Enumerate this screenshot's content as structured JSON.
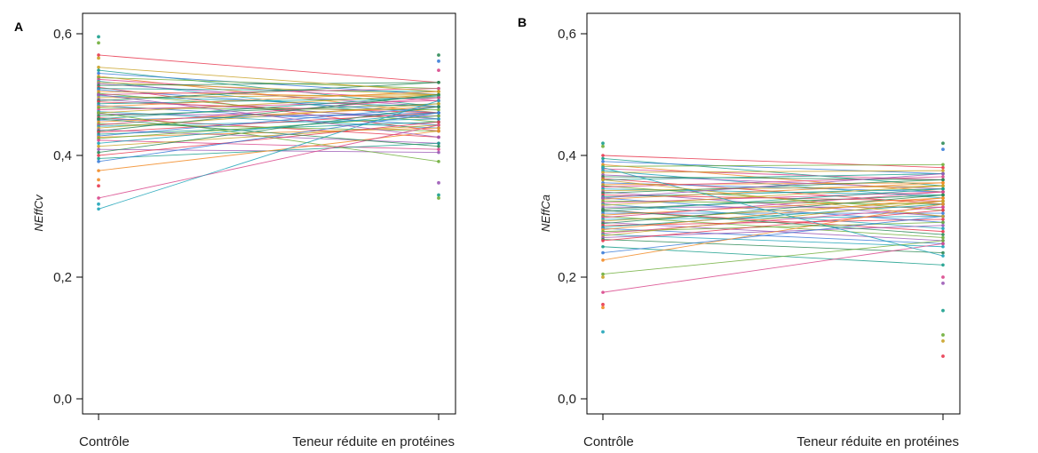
{
  "chart_data": [
    {
      "type": "line",
      "panel_label": "A",
      "ylabel": "NEffCv",
      "categories": [
        "Contrôle",
        "Teneur réduite en protéines"
      ],
      "ylim": [
        0,
        0.62
      ],
      "yticks": [
        0.0,
        0.2,
        0.4,
        0.6
      ],
      "ytick_labels": [
        "0,0",
        "0,2",
        "0,4",
        "0,6"
      ],
      "grid": false,
      "lines": [
        [
          0.565,
          0.52
        ],
        [
          0.54,
          0.48
        ],
        [
          0.535,
          0.5
        ],
        [
          0.53,
          0.47
        ],
        [
          0.528,
          0.51
        ],
        [
          0.525,
          0.49
        ],
        [
          0.522,
          0.46
        ],
        [
          0.52,
          0.5
        ],
        [
          0.518,
          0.48
        ],
        [
          0.515,
          0.52
        ],
        [
          0.512,
          0.44
        ],
        [
          0.51,
          0.505
        ],
        [
          0.508,
          0.47
        ],
        [
          0.505,
          0.495
        ],
        [
          0.502,
          0.455
        ],
        [
          0.5,
          0.51
        ],
        [
          0.498,
          0.48
        ],
        [
          0.495,
          0.5
        ],
        [
          0.492,
          0.46
        ],
        [
          0.49,
          0.52
        ],
        [
          0.488,
          0.47
        ],
        [
          0.485,
          0.495
        ],
        [
          0.482,
          0.45
        ],
        [
          0.48,
          0.505
        ],
        [
          0.478,
          0.475
        ],
        [
          0.475,
          0.49
        ],
        [
          0.472,
          0.445
        ],
        [
          0.47,
          0.5
        ],
        [
          0.468,
          0.465
        ],
        [
          0.465,
          0.485
        ],
        [
          0.462,
          0.43
        ],
        [
          0.46,
          0.498
        ],
        [
          0.458,
          0.47
        ],
        [
          0.455,
          0.48
        ],
        [
          0.452,
          0.44
        ],
        [
          0.45,
          0.495
        ],
        [
          0.448,
          0.46
        ],
        [
          0.445,
          0.485
        ],
        [
          0.442,
          0.42
        ],
        [
          0.44,
          0.5
        ],
        [
          0.438,
          0.47
        ],
        [
          0.435,
          0.455
        ],
        [
          0.432,
          0.48
        ],
        [
          0.43,
          0.445
        ],
        [
          0.428,
          0.465
        ],
        [
          0.425,
          0.41
        ],
        [
          0.42,
          0.47
        ],
        [
          0.415,
          0.45
        ],
        [
          0.41,
          0.405
        ],
        [
          0.405,
          0.48
        ],
        [
          0.4,
          0.455
        ],
        [
          0.395,
          0.42
        ],
        [
          0.39,
          0.47
        ],
        [
          0.375,
          0.44
        ],
        [
          0.47,
          0.39
        ],
        [
          0.33,
          0.45
        ],
        [
          0.312,
          0.49
        ],
        [
          0.545,
          0.505
        ],
        [
          0.5,
          0.43
        ],
        [
          0.46,
          0.415
        ]
      ],
      "extra_points": [
        {
          "x": 0,
          "y": 0.595
        },
        {
          "x": 0,
          "y": 0.585
        },
        {
          "x": 0,
          "y": 0.56
        },
        {
          "x": 0,
          "y": 0.35
        },
        {
          "x": 0,
          "y": 0.36
        },
        {
          "x": 0,
          "y": 0.32
        },
        {
          "x": 1,
          "y": 0.565
        },
        {
          "x": 1,
          "y": 0.555
        },
        {
          "x": 1,
          "y": 0.54
        },
        {
          "x": 1,
          "y": 0.355
        },
        {
          "x": 1,
          "y": 0.335
        },
        {
          "x": 1,
          "y": 0.33
        }
      ]
    },
    {
      "type": "line",
      "panel_label": "B",
      "ylabel": "NEffCa",
      "categories": [
        "Contrôle",
        "Teneur réduite en protéines"
      ],
      "ylim": [
        0,
        0.62
      ],
      "yticks": [
        0.0,
        0.2,
        0.4,
        0.6
      ],
      "ytick_labels": [
        "0,0",
        "0,2",
        "0,4",
        "0,6"
      ],
      "grid": false,
      "lines": [
        [
          0.4,
          0.38
        ],
        [
          0.395,
          0.35
        ],
        [
          0.39,
          0.37
        ],
        [
          0.385,
          0.34
        ],
        [
          0.382,
          0.385
        ],
        [
          0.378,
          0.36
        ],
        [
          0.375,
          0.33
        ],
        [
          0.372,
          0.375
        ],
        [
          0.368,
          0.345
        ],
        [
          0.365,
          0.36
        ],
        [
          0.362,
          0.32
        ],
        [
          0.36,
          0.37
        ],
        [
          0.355,
          0.34
        ],
        [
          0.352,
          0.355
        ],
        [
          0.35,
          0.31
        ],
        [
          0.348,
          0.365
        ],
        [
          0.345,
          0.335
        ],
        [
          0.342,
          0.35
        ],
        [
          0.34,
          0.3
        ],
        [
          0.338,
          0.36
        ],
        [
          0.335,
          0.325
        ],
        [
          0.332,
          0.345
        ],
        [
          0.33,
          0.29
        ],
        [
          0.328,
          0.355
        ],
        [
          0.325,
          0.32
        ],
        [
          0.322,
          0.34
        ],
        [
          0.32,
          0.28
        ],
        [
          0.318,
          0.35
        ],
        [
          0.315,
          0.315
        ],
        [
          0.312,
          0.335
        ],
        [
          0.31,
          0.275
        ],
        [
          0.308,
          0.345
        ],
        [
          0.305,
          0.305
        ],
        [
          0.302,
          0.33
        ],
        [
          0.3,
          0.265
        ],
        [
          0.298,
          0.34
        ],
        [
          0.295,
          0.3
        ],
        [
          0.292,
          0.325
        ],
        [
          0.29,
          0.26
        ],
        [
          0.288,
          0.335
        ],
        [
          0.285,
          0.295
        ],
        [
          0.282,
          0.32
        ],
        [
          0.28,
          0.255
        ],
        [
          0.278,
          0.33
        ],
        [
          0.275,
          0.29
        ],
        [
          0.272,
          0.315
        ],
        [
          0.27,
          0.25
        ],
        [
          0.268,
          0.325
        ],
        [
          0.265,
          0.285
        ],
        [
          0.262,
          0.24
        ],
        [
          0.26,
          0.31
        ],
        [
          0.25,
          0.22
        ],
        [
          0.24,
          0.3
        ],
        [
          0.228,
          0.32
        ],
        [
          0.205,
          0.26
        ],
        [
          0.175,
          0.255
        ],
        [
          0.38,
          0.235
        ],
        [
          0.36,
          0.3
        ],
        [
          0.33,
          0.37
        ],
        [
          0.31,
          0.27
        ]
      ],
      "extra_points": [
        {
          "x": 0,
          "y": 0.42
        },
        {
          "x": 0,
          "y": 0.415
        },
        {
          "x": 0,
          "y": 0.2
        },
        {
          "x": 0,
          "y": 0.155
        },
        {
          "x": 0,
          "y": 0.15
        },
        {
          "x": 0,
          "y": 0.11
        },
        {
          "x": 1,
          "y": 0.42
        },
        {
          "x": 1,
          "y": 0.41
        },
        {
          "x": 1,
          "y": 0.2
        },
        {
          "x": 1,
          "y": 0.19
        },
        {
          "x": 1,
          "y": 0.145
        },
        {
          "x": 1,
          "y": 0.105
        },
        {
          "x": 1,
          "y": 0.095
        },
        {
          "x": 1,
          "y": 0.07
        }
      ]
    }
  ],
  "palette": [
    "#e8384f",
    "#1a9f8c",
    "#3b7dd8",
    "#f28c28",
    "#6fae3a",
    "#d9488c",
    "#20a4b8",
    "#c9a227",
    "#9b59b6",
    "#2e8b57"
  ]
}
